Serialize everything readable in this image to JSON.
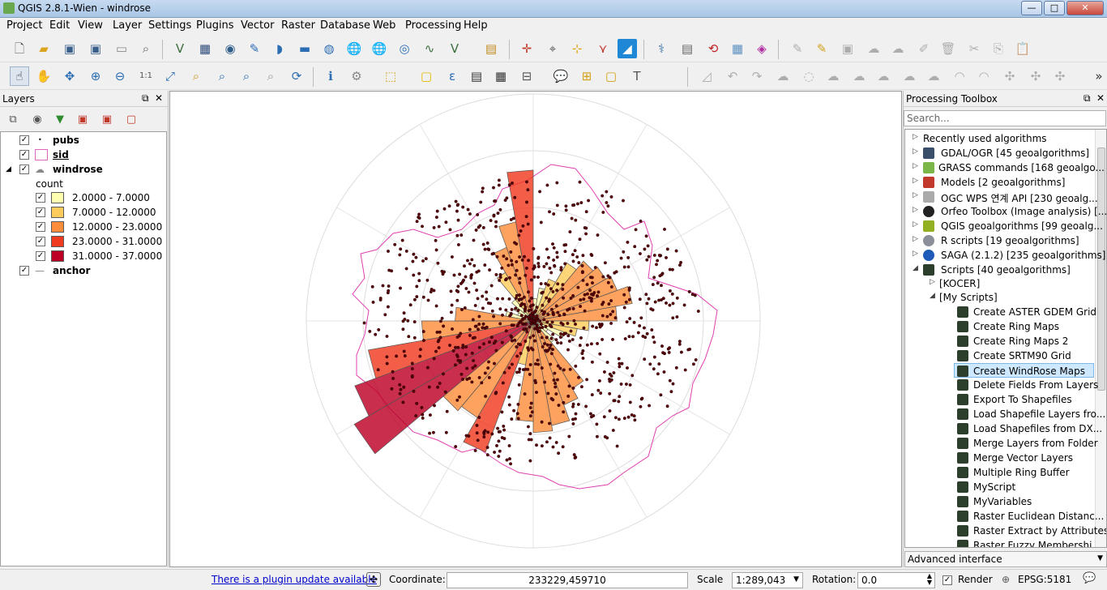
{
  "window": {
    "title": "QGIS 2.8.1-Wien - windrose",
    "minimize": "—",
    "maximize": "□",
    "close": "✕"
  },
  "menu": [
    "Project",
    "Edit",
    "View",
    "Layer",
    "Settings",
    "Plugins",
    "Vector",
    "Raster",
    "Database",
    "Web",
    "Processing",
    "Help"
  ],
  "layers_panel": {
    "title": "Layers",
    "float_btn": "⧉",
    "close_btn": "✕",
    "layers": [
      {
        "name": "pubs",
        "checked": true
      },
      {
        "name": "sid",
        "checked": true
      },
      {
        "name": "windrose",
        "checked": true,
        "attribute": "count"
      },
      {
        "name": "anchor",
        "checked": true
      }
    ],
    "legend": [
      {
        "label": "2.0000 - 7.0000",
        "color": "#ffffb2"
      },
      {
        "label": "7.0000 - 12.0000",
        "color": "#fecc5c"
      },
      {
        "label": "12.0000 - 23.0000",
        "color": "#fd8d3c"
      },
      {
        "label": "23.0000 - 31.0000",
        "color": "#f03b20"
      },
      {
        "label": "31.0000 - 37.0000",
        "color": "#bd0026"
      }
    ]
  },
  "toolbox": {
    "title": "Processing Toolbox",
    "float_btn": "⧉",
    "close_btn": "✕",
    "search_placeholder": "Search...",
    "providers": [
      {
        "label": "Recently used algorithms",
        "icon": "none"
      },
      {
        "label": "GDAL/OGR [45 geoalgorithms]",
        "icon": "gdal"
      },
      {
        "label": "GRASS commands [168 geoalgo...",
        "icon": "grass"
      },
      {
        "label": "Models [2 geoalgorithms]",
        "icon": "models"
      },
      {
        "label": "OGC WPS 연계 API [230 geoalg...",
        "icon": "wps"
      },
      {
        "label": "Orfeo Toolbox (Image analysis) [...",
        "icon": "orfeo"
      },
      {
        "label": "QGIS geoalgorithms [99 geoalg...",
        "icon": "qgis"
      },
      {
        "label": "R scripts [19 geoalgorithms]",
        "icon": "r"
      },
      {
        "label": "SAGA (2.1.2) [235 geoalgorithms]",
        "icon": "saga"
      },
      {
        "label": "Scripts [40 geoalgorithms]",
        "icon": "scripts"
      }
    ],
    "script_groups": [
      "[KOCER]",
      "[My Scripts]"
    ],
    "scripts": [
      "Create ASTER GDEM Grid",
      "Create Ring Maps",
      "Create Ring Maps 2",
      "Create SRTM90 Grid",
      "Create WindRose Maps",
      "Delete Fields From Layers",
      "Export To Shapefiles",
      "Load Shapefile Layers fro...",
      "Load Shapefiles from DX...",
      "Merge Layers from Folder",
      "Merge Vector Layers",
      "Multiple Ring Buffer",
      "MyScript",
      "MyVariables",
      "Raster Euclidean Distanc...",
      "Raster Extract by Attributes",
      "Raster Fuzzy Membershi..."
    ],
    "selected_script": "Create WindRose Maps",
    "interface": "Advanced interface"
  },
  "statusbar": {
    "plugin_update": "There is a plugin update available",
    "coordinate_label": "Coordinate:",
    "coordinate": "233229,459710",
    "scale_label": "Scale",
    "scale": "1:289,043",
    "rotation_label": "Rotation:",
    "rotation": "0.0",
    "render_label": "Render",
    "crs": "EPSG:5181"
  },
  "windrose": {
    "colors": {
      "c1": "#ffffb2",
      "c2": "#fecc5c",
      "c3": "#fd8d3c",
      "c4": "#f03b20",
      "c5": "#bd0026"
    },
    "counts": [
      4,
      6,
      8,
      12,
      14,
      15,
      16,
      18,
      15,
      10,
      8,
      6,
      3,
      5,
      14,
      16,
      19,
      20,
      18,
      8,
      25,
      20,
      21,
      37,
      34,
      30,
      20,
      14,
      5,
      3,
      4,
      5,
      10,
      14,
      18,
      27
    ],
    "classes": [
      1,
      1,
      2,
      2,
      3,
      3,
      3,
      3,
      3,
      2,
      2,
      1,
      1,
      1,
      3,
      3,
      3,
      3,
      3,
      2,
      4,
      3,
      3,
      5,
      5,
      4,
      3,
      3,
      1,
      1,
      1,
      1,
      2,
      3,
      3,
      4
    ]
  }
}
